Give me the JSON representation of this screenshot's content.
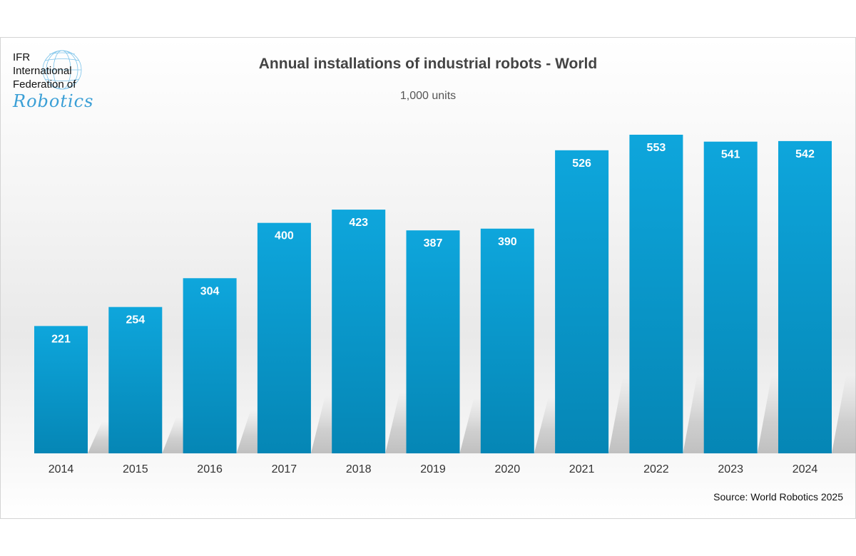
{
  "logo": {
    "line1": "IFR",
    "line2": "International",
    "line3": "Federation of",
    "script": "Robotics"
  },
  "chart_data": {
    "type": "bar",
    "title": "Annual installations of industrial robots - World",
    "subtitle": "1,000 units",
    "categories": [
      "2014",
      "2015",
      "2016",
      "2017",
      "2018",
      "2019",
      "2020",
      "2021",
      "2022",
      "2023",
      "2024"
    ],
    "values": [
      221,
      254,
      304,
      400,
      423,
      387,
      390,
      526,
      553,
      541,
      542
    ],
    "xlabel": "",
    "ylabel": "",
    "ylim": [
      0,
      553
    ],
    "grid": false,
    "bar_color": "#0a9fd4"
  },
  "source": "Source: World Robotics 2025"
}
